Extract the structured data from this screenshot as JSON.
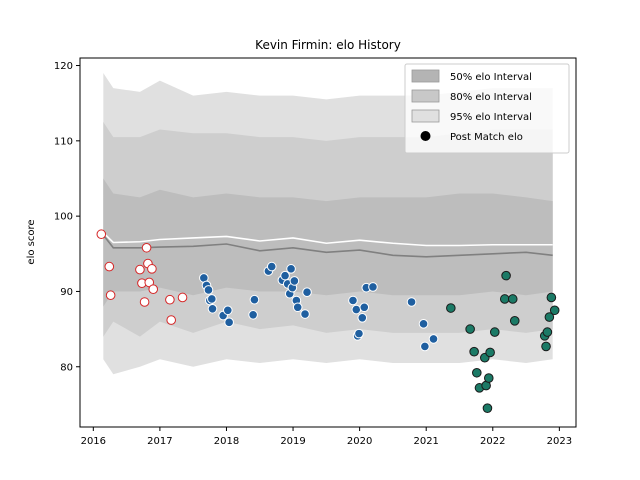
{
  "chart_data": {
    "type": "scatter",
    "title": "Kevin Firmin: elo History",
    "xlabel": "",
    "ylabel": "elo score",
    "xlim": [
      2015.8,
      2023.25
    ],
    "ylim": [
      72,
      121
    ],
    "x_ticks": [
      2016,
      2017,
      2018,
      2019,
      2020,
      2021,
      2022,
      2023
    ],
    "y_ticks": [
      80,
      90,
      100,
      110,
      120
    ],
    "grid": false,
    "legend_position": "top-right",
    "legend": [
      {
        "label": "50% elo Interval",
        "kind": "band",
        "color": "#b4b4b4"
      },
      {
        "label": "80% elo Interval",
        "kind": "band",
        "color": "#c8c8c8"
      },
      {
        "label": "95% elo Interval",
        "kind": "band",
        "color": "#e0e0e0"
      },
      {
        "label": "Post Match elo",
        "kind": "marker",
        "color": "#000000"
      }
    ],
    "bands": {
      "x": [
        2016.15,
        2016.3,
        2016.7,
        2017.0,
        2017.5,
        2018.0,
        2018.5,
        2019.0,
        2019.5,
        2020.0,
        2020.5,
        2021.0,
        2021.5,
        2022.0,
        2022.5,
        2022.9
      ],
      "q95_upper": [
        119,
        117,
        116.5,
        118,
        116,
        116.5,
        116,
        116,
        115.5,
        116,
        116,
        116,
        116.5,
        117,
        117,
        117
      ],
      "q90_upper": [
        112.5,
        110.5,
        110.5,
        111.5,
        111,
        111,
        110.5,
        110.5,
        110,
        110.5,
        110.5,
        110.5,
        111,
        111.5,
        111.5,
        111.5
      ],
      "q75_upper": [
        105,
        103,
        102.5,
        103.5,
        102.5,
        103,
        102.5,
        102.5,
        102,
        102.5,
        102.5,
        102.5,
        103,
        103,
        102.5,
        102
      ],
      "q25_lower": [
        88,
        90,
        90,
        90.5,
        89.5,
        90.5,
        90,
        90,
        89.5,
        90,
        89.5,
        89.5,
        89.5,
        90,
        89.5,
        90
      ],
      "q10_lower": [
        84,
        86,
        84,
        86,
        84.5,
        86,
        85,
        85.5,
        84.5,
        85,
        84.5,
        84.5,
        84.5,
        85,
        84.5,
        85
      ],
      "q05_lower": [
        81,
        79,
        80,
        81,
        80,
        81,
        80.5,
        81,
        80.5,
        81,
        80.5,
        80.5,
        80.5,
        81,
        80.5,
        81
      ]
    },
    "median_line": {
      "x": [
        2016.15,
        2016.3,
        2016.7,
        2017.0,
        2017.5,
        2018.0,
        2018.5,
        2019.0,
        2019.5,
        2020.0,
        2020.5,
        2021.0,
        2021.5,
        2022.0,
        2022.5,
        2022.9
      ],
      "y": [
        97.5,
        95.8,
        95.8,
        95.9,
        96,
        96.3,
        95.4,
        95.8,
        95.2,
        95.5,
        94.8,
        94.6,
        94.8,
        95,
        95.2,
        94.8
      ],
      "color": "#808080"
    },
    "mean_line": {
      "x": [
        2016.15,
        2016.3,
        2016.7,
        2017.0,
        2017.5,
        2018.0,
        2018.5,
        2019.0,
        2019.5,
        2020.0,
        2020.5,
        2021.0,
        2021.5,
        2022.0,
        2022.5,
        2022.9
      ],
      "y": [
        97.8,
        96.5,
        96.6,
        96.9,
        97.1,
        97.3,
        96.7,
        97.1,
        96.4,
        96.8,
        96.4,
        96.1,
        96.1,
        96.2,
        96.2,
        96.2
      ],
      "color": "#ffffff"
    },
    "series": [
      {
        "color": "#ffffff",
        "edgecolor": "#d62728",
        "points": [
          [
            2016.12,
            97.6
          ],
          [
            2016.24,
            93.3
          ],
          [
            2016.26,
            89.5
          ],
          [
            2016.7,
            92.9
          ],
          [
            2016.73,
            91.1
          ],
          [
            2016.77,
            88.6
          ],
          [
            2016.8,
            95.8
          ],
          [
            2016.82,
            93.7
          ],
          [
            2016.84,
            91.2
          ],
          [
            2016.88,
            93.0
          ],
          [
            2016.9,
            90.3
          ],
          [
            2017.15,
            88.9
          ],
          [
            2017.17,
            86.2
          ],
          [
            2017.34,
            89.2
          ]
        ]
      },
      {
        "color": "#1f5fa0",
        "edgecolor": "#ffffff",
        "points": [
          [
            2017.66,
            91.8
          ],
          [
            2017.7,
            90.8
          ],
          [
            2017.73,
            90.2
          ],
          [
            2017.75,
            88.8
          ],
          [
            2017.78,
            89.0
          ],
          [
            2017.79,
            87.7
          ],
          [
            2017.95,
            86.8
          ],
          [
            2018.02,
            87.5
          ],
          [
            2018.04,
            85.9
          ],
          [
            2018.4,
            86.9
          ],
          [
            2018.42,
            88.9
          ],
          [
            2018.63,
            92.7
          ],
          [
            2018.68,
            93.3
          ],
          [
            2018.84,
            91.5
          ],
          [
            2018.88,
            92.1
          ],
          [
            2018.92,
            91.0
          ],
          [
            2018.95,
            89.7
          ],
          [
            2018.97,
            93.0
          ],
          [
            2018.99,
            90.5
          ],
          [
            2019.02,
            91.4
          ],
          [
            2019.05,
            88.8
          ],
          [
            2019.07,
            87.9
          ],
          [
            2019.18,
            87.0
          ],
          [
            2019.21,
            89.9
          ],
          [
            2019.9,
            88.8
          ],
          [
            2019.95,
            87.6
          ],
          [
            2019.97,
            84.1
          ],
          [
            2019.99,
            84.4
          ],
          [
            2020.04,
            86.5
          ],
          [
            2020.07,
            87.9
          ],
          [
            2020.1,
            90.5
          ],
          [
            2020.2,
            90.6
          ],
          [
            2020.78,
            88.6
          ],
          [
            2020.96,
            85.7
          ],
          [
            2020.98,
            82.7
          ],
          [
            2021.11,
            83.7
          ]
        ]
      },
      {
        "color": "#1b7a66",
        "edgecolor": "#1a1a1a",
        "points": [
          [
            2021.37,
            87.8
          ],
          [
            2021.66,
            85.0
          ],
          [
            2021.72,
            82.0
          ],
          [
            2021.76,
            79.2
          ],
          [
            2021.8,
            77.2
          ],
          [
            2021.88,
            81.2
          ],
          [
            2021.9,
            77.5
          ],
          [
            2021.92,
            74.5
          ],
          [
            2021.96,
            81.9
          ],
          [
            2021.94,
            78.5
          ],
          [
            2022.03,
            84.6
          ],
          [
            2022.18,
            89.0
          ],
          [
            2022.2,
            92.1
          ],
          [
            2022.3,
            89.0
          ],
          [
            2022.33,
            86.1
          ],
          [
            2022.78,
            84.1
          ],
          [
            2022.8,
            82.7
          ],
          [
            2022.82,
            84.6
          ],
          [
            2022.85,
            86.6
          ],
          [
            2022.88,
            89.2
          ],
          [
            2022.93,
            87.5
          ]
        ]
      }
    ]
  }
}
